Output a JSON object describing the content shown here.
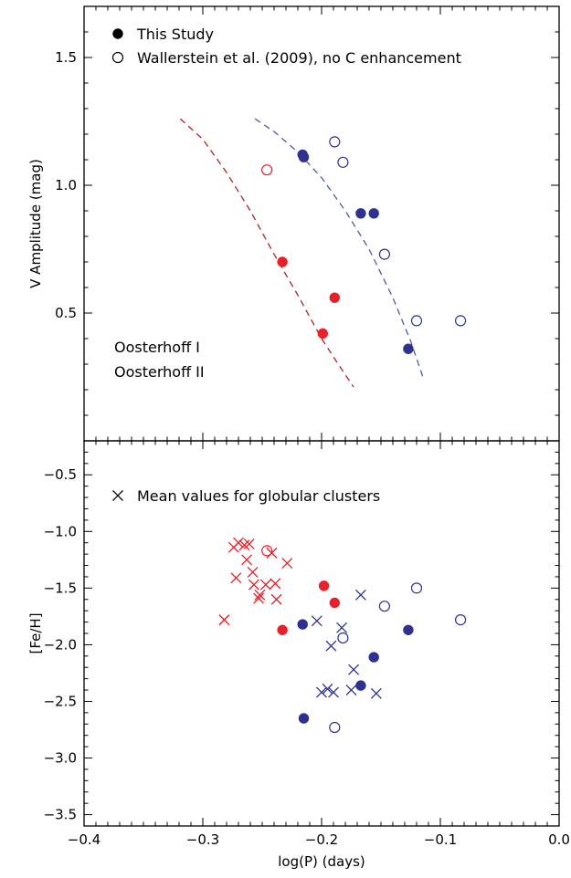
{
  "chart_data": [
    {
      "type": "scatter",
      "panel": "top",
      "ylabel": "V Amplitude (mag)",
      "xlim": [
        -0.4,
        0.0
      ],
      "ylim": [
        0.0,
        1.7
      ],
      "yticks": [
        "0.5",
        "1.0",
        "1.5"
      ],
      "ytick_values": [
        0.5,
        1.0,
        1.5
      ],
      "legend": {
        "placement": "top-left",
        "entries": [
          {
            "marker": "filled-circle",
            "label": "This Study"
          },
          {
            "marker": "open-circle",
            "label": "Wallerstein et al. (2009), no C enhancement"
          }
        ]
      },
      "group_labels": [
        {
          "text": "Oosterhoff I",
          "color": "#e8202a"
        },
        {
          "text": "Oosterhoff II",
          "color": "#2e3192"
        }
      ],
      "series": [
        {
          "group": "Oosterhoff I",
          "source": "This Study",
          "color": "#e8202a",
          "marker": "filled-circle",
          "points": [
            [
              -0.233,
              0.7
            ],
            [
              -0.189,
              0.56
            ],
            [
              -0.199,
              0.42
            ]
          ]
        },
        {
          "group": "Oosterhoff I",
          "source": "Wallerstein",
          "color": "#e8202a",
          "marker": "open-circle",
          "points": [
            [
              -0.246,
              1.06
            ]
          ]
        },
        {
          "group": "Oosterhoff II",
          "source": "This Study",
          "color": "#2e3192",
          "marker": "filled-circle",
          "points": [
            [
              -0.216,
              1.12
            ],
            [
              -0.215,
              1.11
            ],
            [
              -0.167,
              0.89
            ],
            [
              -0.156,
              0.89
            ],
            [
              -0.127,
              0.36
            ]
          ]
        },
        {
          "group": "Oosterhoff II",
          "source": "Wallerstein",
          "color": "#2e3192",
          "marker": "open-circle",
          "points": [
            [
              -0.189,
              1.17
            ],
            [
              -0.182,
              1.09
            ],
            [
              -0.147,
              0.73
            ],
            [
              -0.12,
              0.47
            ],
            [
              -0.083,
              0.47
            ]
          ]
        }
      ],
      "curves": [
        {
          "group": "Oosterhoff I",
          "color": "#b22222",
          "style": "dashed",
          "points": [
            [
              -0.319,
              1.26
            ],
            [
              -0.3,
              1.18
            ],
            [
              -0.28,
              1.05
            ],
            [
              -0.26,
              0.9
            ],
            [
              -0.24,
              0.73
            ],
            [
              -0.22,
              0.57
            ],
            [
              -0.2,
              0.4
            ],
            [
              -0.186,
              0.3
            ],
            [
              -0.173,
              0.21
            ]
          ]
        },
        {
          "group": "Oosterhoff II",
          "color": "#4a5ab0",
          "style": "dashed",
          "points": [
            [
              -0.256,
              1.26
            ],
            [
              -0.24,
              1.21
            ],
            [
              -0.22,
              1.13
            ],
            [
              -0.2,
              1.03
            ],
            [
              -0.18,
              0.9
            ],
            [
              -0.16,
              0.75
            ],
            [
              -0.14,
              0.56
            ],
            [
              -0.125,
              0.39
            ],
            [
              -0.114,
              0.24
            ]
          ]
        }
      ]
    },
    {
      "type": "scatter",
      "panel": "bottom",
      "xlabel": "log(P) (days)",
      "ylabel": "[Fe/H]",
      "xlim": [
        -0.4,
        0.0
      ],
      "ylim": [
        -3.6,
        -0.2
      ],
      "xticks": [
        "−0.4",
        "−0.3",
        "−0.2",
        "−0.1",
        "0.0"
      ],
      "xtick_values": [
        -0.4,
        -0.3,
        -0.2,
        -0.1,
        0.0
      ],
      "yticks": [
        "−3.5",
        "−3.0",
        "−2.5",
        "−2.0",
        "−1.5",
        "−1.0",
        "−0.5"
      ],
      "ytick_values": [
        -3.5,
        -3.0,
        -2.5,
        -2.0,
        -1.5,
        -1.0,
        -0.5
      ],
      "legend": {
        "placement": "top-left",
        "entries": [
          {
            "marker": "cross",
            "label": "Mean values for globular clusters"
          }
        ]
      },
      "series": [
        {
          "group": "Oosterhoff I",
          "source": "This Study",
          "color": "#e8202a",
          "marker": "filled-circle",
          "points": [
            [
              -0.198,
              -1.48
            ],
            [
              -0.189,
              -1.63
            ],
            [
              -0.233,
              -1.87
            ]
          ]
        },
        {
          "group": "Oosterhoff I",
          "source": "Wallerstein",
          "color": "#e8202a",
          "marker": "open-circle",
          "points": [
            [
              -0.246,
              -1.17
            ]
          ]
        },
        {
          "group": "Oosterhoff I",
          "source": "Globular clusters",
          "color": "#e8202a",
          "marker": "cross",
          "points": [
            [
              -0.274,
              -1.14
            ],
            [
              -0.27,
              -1.1
            ],
            [
              -0.265,
              -1.12
            ],
            [
              -0.261,
              -1.11
            ],
            [
              -0.242,
              -1.19
            ],
            [
              -0.229,
              -1.28
            ],
            [
              -0.272,
              -1.41
            ],
            [
              -0.263,
              -1.25
            ],
            [
              -0.257,
              -1.47
            ],
            [
              -0.252,
              -1.56
            ],
            [
              -0.253,
              -1.59
            ],
            [
              -0.247,
              -1.47
            ],
            [
              -0.239,
              -1.46
            ],
            [
              -0.238,
              -1.6
            ],
            [
              -0.258,
              -1.36
            ],
            [
              -0.282,
              -1.78
            ]
          ]
        },
        {
          "group": "Oosterhoff II",
          "source": "This Study",
          "color": "#2e3192",
          "marker": "filled-circle",
          "points": [
            [
              -0.216,
              -1.82
            ],
            [
              -0.156,
              -2.11
            ],
            [
              -0.127,
              -1.87
            ],
            [
              -0.167,
              -2.36
            ],
            [
              -0.215,
              -2.65
            ]
          ]
        },
        {
          "group": "Oosterhoff II",
          "source": "Wallerstein",
          "color": "#2e3192",
          "marker": "open-circle",
          "points": [
            [
              -0.182,
              -1.94
            ],
            [
              -0.147,
              -1.66
            ],
            [
              -0.12,
              -1.5
            ],
            [
              -0.083,
              -1.78
            ],
            [
              -0.189,
              -2.73
            ]
          ]
        },
        {
          "group": "Oosterhoff II",
          "source": "Globular clusters",
          "color": "#2e3192",
          "marker": "cross",
          "points": [
            [
              -0.204,
              -1.79
            ],
            [
              -0.183,
              -1.85
            ],
            [
              -0.167,
              -1.56
            ],
            [
              -0.192,
              -2.01
            ],
            [
              -0.173,
              -2.22
            ],
            [
              -0.195,
              -2.39
            ],
            [
              -0.19,
              -2.42
            ],
            [
              -0.2,
              -2.42
            ],
            [
              -0.175,
              -2.4
            ],
            [
              -0.154,
              -2.43
            ]
          ]
        }
      ]
    }
  ]
}
